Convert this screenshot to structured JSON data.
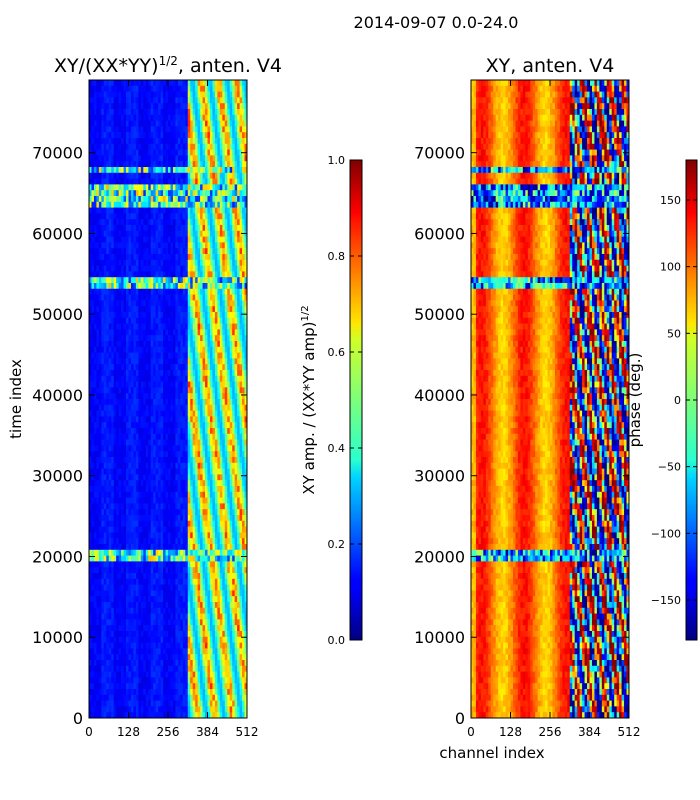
{
  "suptitle": "2014-09-07 0.0-24.0",
  "chart_data": [
    {
      "type": "heatmap",
      "title": "XY/(XX*YY)^{1/2}, anten. V4",
      "title_parts": {
        "main": "XY/(XX*YY)",
        "sup": "1/2",
        "tail": ", anten. V4"
      },
      "xlabel": "",
      "ylabel": "time index",
      "xlim": [
        0,
        512
      ],
      "ylim": [
        0,
        79000
      ],
      "xticks": [
        "0",
        "128",
        "256",
        "384",
        "512"
      ],
      "xtick_values": [
        0,
        128,
        256,
        384,
        512
      ],
      "yticks": [
        "0",
        "10000",
        "20000",
        "30000",
        "40000",
        "50000",
        "60000",
        "70000"
      ],
      "ytick_values": [
        0,
        10000,
        20000,
        30000,
        40000,
        50000,
        60000,
        70000
      ],
      "colormap": "jet",
      "colorbar": {
        "label": "XY amp. / (XX*YY amp)^{1/2}",
        "label_parts": {
          "main": "XY amp. / (XX*YY amp)",
          "sup": "1/2"
        },
        "range": [
          0.0,
          1.0
        ],
        "ticks": [
          "0.0",
          "0.2",
          "0.4",
          "0.6",
          "0.8",
          "1.0"
        ],
        "tick_values": [
          0.0,
          0.2,
          0.4,
          0.6,
          0.8,
          1.0
        ]
      },
      "data_summary": {
        "low_band_channels": [
          0,
          320
        ],
        "low_band_value": 0.12,
        "high_band_channels": [
          320,
          512
        ],
        "high_band_value_range": [
          0.3,
          0.85
        ],
        "notable_time_rows": [
          64000,
          65500,
          68000,
          53800,
          20000
        ]
      }
    },
    {
      "type": "heatmap",
      "title": "XY, anten. V4",
      "xlabel": "channel index",
      "ylabel": "",
      "xlim": [
        0,
        512
      ],
      "ylim": [
        0,
        79000
      ],
      "xticks": [
        "0",
        "128",
        "256",
        "384",
        "512"
      ],
      "xtick_values": [
        0,
        128,
        256,
        384,
        512
      ],
      "yticks": [
        "0",
        "10000",
        "20000",
        "30000",
        "40000",
        "50000",
        "60000",
        "70000"
      ],
      "ytick_values": [
        0,
        10000,
        20000,
        30000,
        40000,
        50000,
        60000,
        70000
      ],
      "colormap": "jet",
      "colorbar": {
        "label": "phase (deg.)",
        "range": [
          -180,
          180
        ],
        "ticks": [
          "−150",
          "−100",
          "−50",
          "0",
          "50",
          "100",
          "150"
        ],
        "tick_values": [
          -150,
          -100,
          -50,
          0,
          50,
          100,
          150
        ]
      },
      "data_summary": {
        "low_band_channels": [
          0,
          320
        ],
        "low_band_phase_deg": [
          60,
          130
        ],
        "high_band_channels": [
          320,
          512
        ],
        "high_band_phase_deg": [
          -180,
          180
        ],
        "notable_time_rows": [
          64000,
          65500,
          68000,
          53800,
          20000
        ]
      }
    }
  ]
}
